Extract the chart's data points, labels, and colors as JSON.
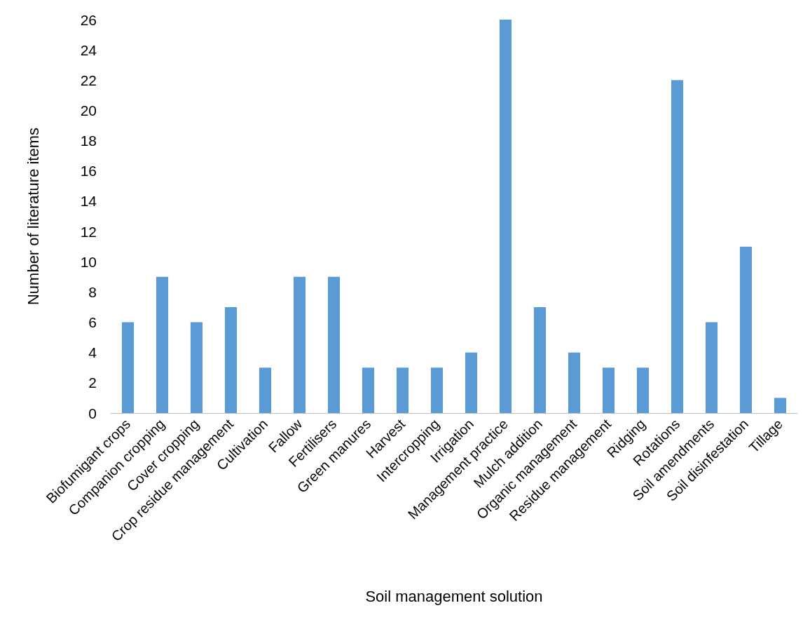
{
  "chart_data": {
    "type": "bar",
    "xlabel": "Soil management solution",
    "ylabel": "Number of literature items",
    "categories": [
      "Biofumigant crops",
      "Companion cropping",
      "Cover cropping",
      "Crop residue management",
      "Cultivation",
      "Fallow",
      "Fertilisers",
      "Green manures",
      "Harvest",
      "Intercropping",
      "Irrigation",
      "Management practice",
      "Mulch addition",
      "Organic management",
      "Residue management",
      "Ridging",
      "Rotations",
      "Soil amendments",
      "Soil disinfestation",
      "Tillage"
    ],
    "values": [
      6,
      9,
      6,
      7,
      3,
      9,
      9,
      3,
      3,
      3,
      4,
      26,
      7,
      4,
      3,
      3,
      22,
      6,
      11,
      1
    ],
    "color": "#5b9bd5",
    "ylim": [
      0,
      26
    ],
    "yticks": [
      0,
      2,
      4,
      6,
      8,
      10,
      12,
      14,
      16,
      18,
      20,
      22,
      24,
      26
    ],
    "grid": false
  }
}
